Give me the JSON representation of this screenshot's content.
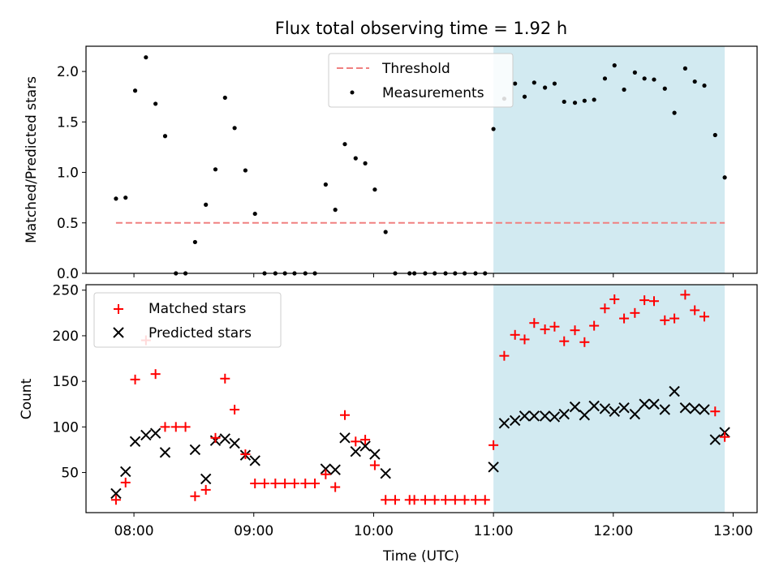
{
  "title": "Flux total observing time = 1.92 h",
  "xlabel": "Time (UTC)",
  "colors": {
    "threshold": "#f08080",
    "measurements": "#000000",
    "matched": "#ff0000",
    "predicted": "#000000",
    "shade": "#add8e6"
  },
  "chart_data": [
    {
      "type": "scatter",
      "ylabel": "Matched/Predicted stars",
      "ylim": [
        0,
        2.25
      ],
      "yticks": [
        "0.0",
        "0.5",
        "1.0",
        "1.5",
        "2.0"
      ],
      "xlim": [
        7.6,
        13.2
      ],
      "shaded_span": [
        11.0,
        12.93
      ],
      "legend": {
        "placement": "top-center",
        "entries": [
          "Threshold",
          "Measurements"
        ]
      },
      "threshold": {
        "name": "Threshold",
        "y": 0.5,
        "x_range": [
          7.85,
          12.93
        ]
      },
      "series": [
        {
          "name": "Measurements",
          "points": [
            [
              7.85,
              0.74
            ],
            [
              7.93,
              0.75
            ],
            [
              8.01,
              1.81
            ],
            [
              8.1,
              2.14
            ],
            [
              8.18,
              1.68
            ],
            [
              8.26,
              1.36
            ],
            [
              8.35,
              0
            ],
            [
              8.43,
              0
            ],
            [
              8.51,
              0.31
            ],
            [
              8.6,
              0.68
            ],
            [
              8.68,
              1.03
            ],
            [
              8.76,
              1.74
            ],
            [
              8.84,
              1.44
            ],
            [
              8.93,
              1.02
            ],
            [
              9.01,
              0.59
            ],
            [
              9.09,
              0
            ],
            [
              9.18,
              0
            ],
            [
              9.26,
              0
            ],
            [
              9.34,
              0
            ],
            [
              9.43,
              0
            ],
            [
              9.51,
              0
            ],
            [
              9.6,
              0.88
            ],
            [
              9.68,
              0.63
            ],
            [
              9.76,
              1.28
            ],
            [
              9.85,
              1.14
            ],
            [
              9.93,
              1.09
            ],
            [
              10.01,
              0.83
            ],
            [
              10.1,
              0.41
            ],
            [
              10.18,
              0
            ],
            [
              10.3,
              0
            ],
            [
              10.34,
              0
            ],
            [
              10.43,
              0
            ],
            [
              10.51,
              0
            ],
            [
              10.6,
              0
            ],
            [
              10.68,
              0
            ],
            [
              10.76,
              0
            ],
            [
              10.85,
              0
            ],
            [
              10.93,
              0
            ],
            [
              11.0,
              1.43
            ],
            [
              11.09,
              1.73
            ],
            [
              11.18,
              1.88
            ],
            [
              11.26,
              1.75
            ],
            [
              11.34,
              1.89
            ],
            [
              11.43,
              1.84
            ],
            [
              11.51,
              1.88
            ],
            [
              11.59,
              1.7
            ],
            [
              11.68,
              1.69
            ],
            [
              11.76,
              1.71
            ],
            [
              11.84,
              1.72
            ],
            [
              11.93,
              1.93
            ],
            [
              12.01,
              2.06
            ],
            [
              12.09,
              1.82
            ],
            [
              12.18,
              1.99
            ],
            [
              12.26,
              1.93
            ],
            [
              12.34,
              1.92
            ],
            [
              12.43,
              1.83
            ],
            [
              12.51,
              1.59
            ],
            [
              12.6,
              2.03
            ],
            [
              12.68,
              1.9
            ],
            [
              12.76,
              1.86
            ],
            [
              12.85,
              1.37
            ],
            [
              12.93,
              0.95
            ]
          ]
        }
      ]
    },
    {
      "type": "scatter",
      "ylabel": "Count",
      "ylim": [
        6,
        256
      ],
      "yticks": [
        "50",
        "100",
        "150",
        "200",
        "250"
      ],
      "xlim": [
        7.6,
        13.2
      ],
      "xticks": [
        "08:00",
        "09:00",
        "10:00",
        "11:00",
        "12:00",
        "13:00"
      ],
      "shaded_span": [
        11.0,
        12.93
      ],
      "legend": {
        "placement": "top-left",
        "entries": [
          "Matched stars",
          "Predicted stars"
        ]
      },
      "series": [
        {
          "name": "Matched stars",
          "marker": "+",
          "points": [
            [
              7.85,
              20
            ],
            [
              7.93,
              39
            ],
            [
              8.01,
              152
            ],
            [
              8.1,
              195
            ],
            [
              8.18,
              158
            ],
            [
              8.26,
              100
            ],
            [
              8.35,
              100
            ],
            [
              8.43,
              100
            ],
            [
              8.51,
              24
            ],
            [
              8.6,
              31
            ],
            [
              8.68,
              88
            ],
            [
              8.76,
              153
            ],
            [
              8.84,
              119
            ],
            [
              8.93,
              70
            ],
            [
              9.01,
              38
            ],
            [
              9.09,
              38
            ],
            [
              9.18,
              38
            ],
            [
              9.26,
              38
            ],
            [
              9.34,
              38
            ],
            [
              9.43,
              38
            ],
            [
              9.51,
              38
            ],
            [
              9.6,
              48
            ],
            [
              9.68,
              34
            ],
            [
              9.76,
              113
            ],
            [
              9.85,
              84
            ],
            [
              9.93,
              86
            ],
            [
              10.01,
              58
            ],
            [
              10.1,
              20
            ],
            [
              10.18,
              20
            ],
            [
              10.3,
              20
            ],
            [
              10.34,
              20
            ],
            [
              10.43,
              20
            ],
            [
              10.51,
              20
            ],
            [
              10.6,
              20
            ],
            [
              10.68,
              20
            ],
            [
              10.76,
              20
            ],
            [
              10.85,
              20
            ],
            [
              10.93,
              20
            ],
            [
              11.0,
              80
            ],
            [
              11.09,
              178
            ],
            [
              11.18,
              201
            ],
            [
              11.26,
              196
            ],
            [
              11.34,
              214
            ],
            [
              11.43,
              207
            ],
            [
              11.51,
              210
            ],
            [
              11.59,
              194
            ],
            [
              11.68,
              206
            ],
            [
              11.76,
              193
            ],
            [
              11.84,
              211
            ],
            [
              11.93,
              230
            ],
            [
              12.01,
              240
            ],
            [
              12.09,
              219
            ],
            [
              12.18,
              225
            ],
            [
              12.26,
              239
            ],
            [
              12.34,
              238
            ],
            [
              12.43,
              217
            ],
            [
              12.51,
              219
            ],
            [
              12.6,
              245
            ],
            [
              12.68,
              228
            ],
            [
              12.76,
              221
            ],
            [
              12.85,
              117
            ],
            [
              12.93,
              89
            ]
          ]
        },
        {
          "name": "Predicted stars",
          "marker": "x",
          "points": [
            [
              7.85,
              27
            ],
            [
              7.93,
              51
            ],
            [
              8.01,
              84
            ],
            [
              8.1,
              91
            ],
            [
              8.18,
              93
            ],
            [
              8.26,
              72
            ],
            [
              8.51,
              75
            ],
            [
              8.6,
              43
            ],
            [
              8.68,
              85
            ],
            [
              8.76,
              87
            ],
            [
              8.84,
              82
            ],
            [
              8.93,
              69
            ],
            [
              9.01,
              63
            ],
            [
              9.6,
              54
            ],
            [
              9.68,
              53
            ],
            [
              9.76,
              88
            ],
            [
              9.85,
              73
            ],
            [
              9.93,
              79
            ],
            [
              10.01,
              70
            ],
            [
              10.1,
              49
            ],
            [
              11.0,
              56
            ],
            [
              11.09,
              104
            ],
            [
              11.18,
              107
            ],
            [
              11.26,
              112
            ],
            [
              11.34,
              112
            ],
            [
              11.43,
              112
            ],
            [
              11.51,
              111
            ],
            [
              11.59,
              114
            ],
            [
              11.68,
              122
            ],
            [
              11.76,
              113
            ],
            [
              11.84,
              123
            ],
            [
              11.93,
              120
            ],
            [
              12.01,
              117
            ],
            [
              12.09,
              121
            ],
            [
              12.18,
              114
            ],
            [
              12.26,
              125
            ],
            [
              12.34,
              125
            ],
            [
              12.43,
              119
            ],
            [
              12.51,
              139
            ],
            [
              12.6,
              121
            ],
            [
              12.68,
              120
            ],
            [
              12.76,
              119
            ],
            [
              12.85,
              86
            ],
            [
              12.93,
              94
            ]
          ]
        }
      ]
    }
  ]
}
